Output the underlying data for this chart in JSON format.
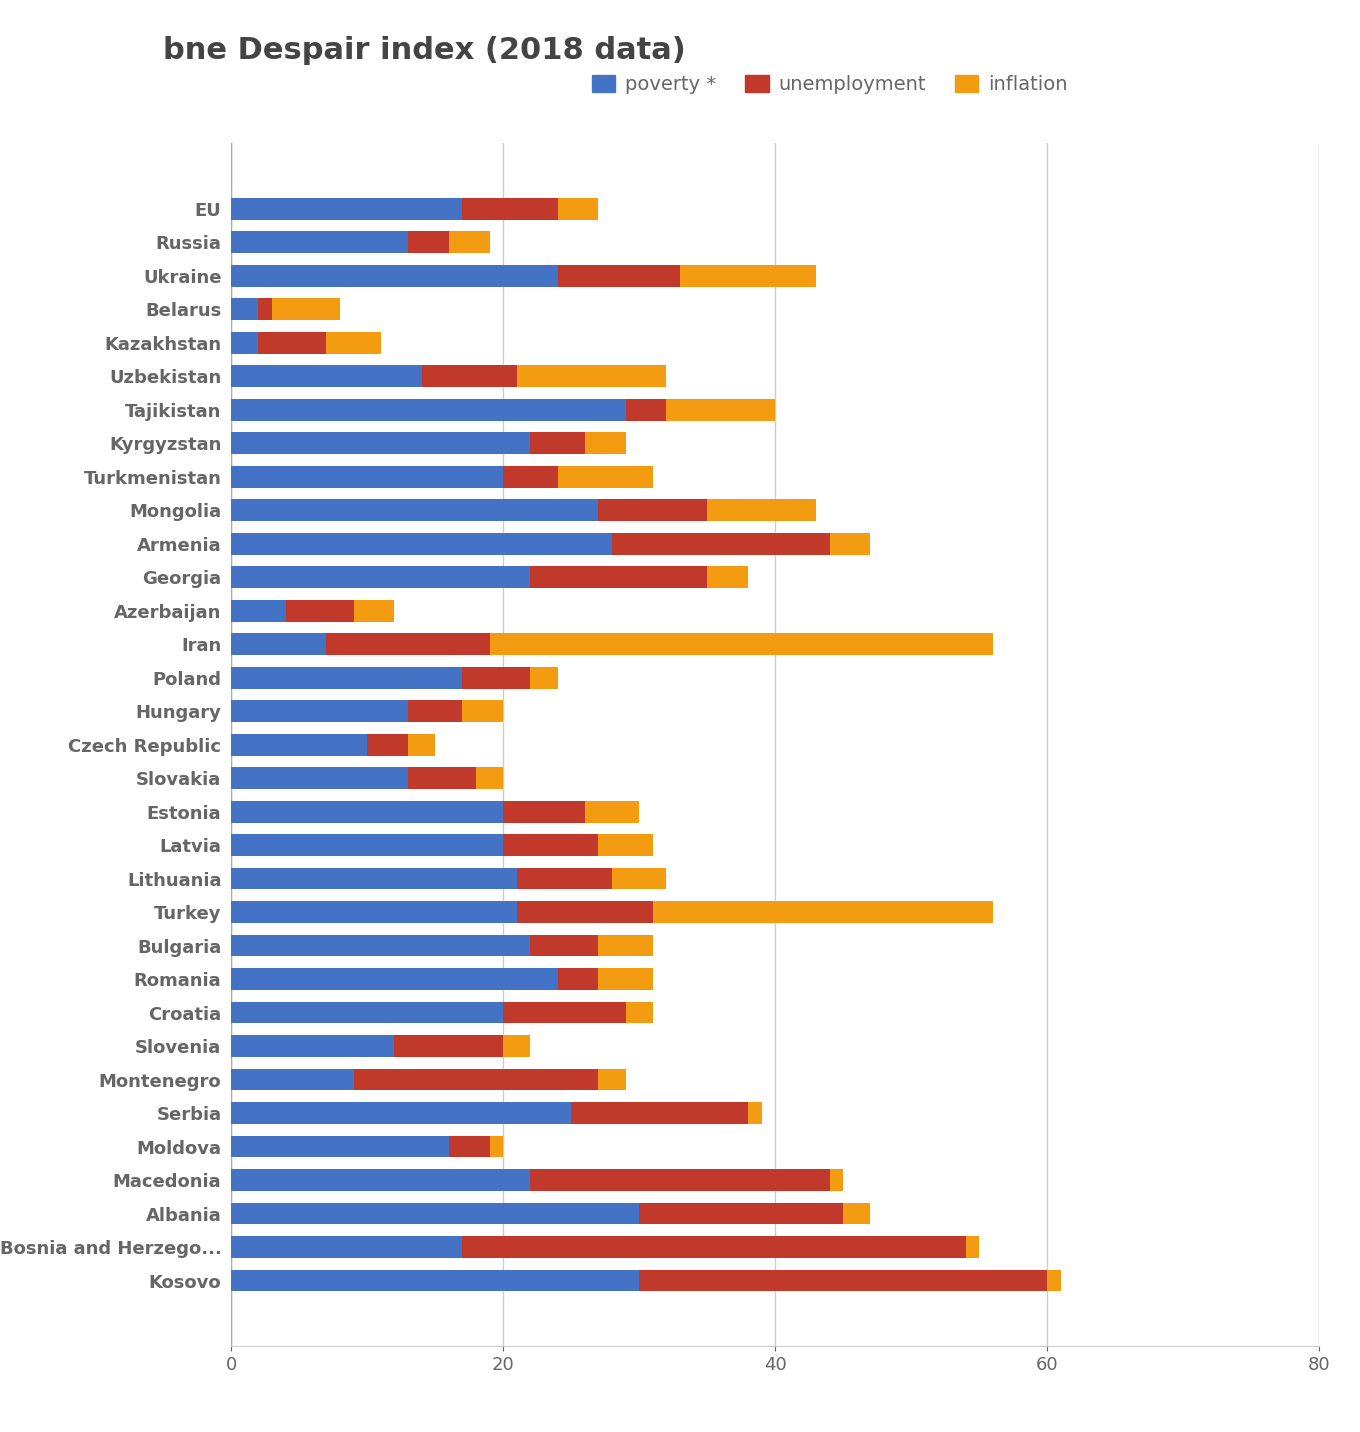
{
  "title": "bne Despair index (2018 data)",
  "categories": [
    "EU",
    "Russia",
    "Ukraine",
    "Belarus",
    "Kazakhstan",
    "Uzbekistan",
    "Tajikistan",
    "Kyrgyzstan",
    "Turkmenistan",
    "Mongolia",
    "Armenia",
    "Georgia",
    "Azerbaijan",
    "Iran",
    "Poland",
    "Hungary",
    "Czech Republic",
    "Slovakia",
    "Estonia",
    "Latvia",
    "Lithuania",
    "Turkey",
    "Bulgaria",
    "Romania",
    "Croatia",
    "Slovenia",
    "Montenegro",
    "Serbia",
    "Moldova",
    "Macedonia",
    "Albania",
    "Bosnia and Herzego...",
    "Kosovo"
  ],
  "poverty": [
    17,
    13,
    24,
    2,
    2,
    14,
    29,
    22,
    20,
    27,
    28,
    22,
    4,
    7,
    17,
    13,
    10,
    13,
    20,
    20,
    21,
    21,
    22,
    24,
    20,
    12,
    9,
    25,
    16,
    22,
    30,
    17,
    30
  ],
  "unemployment": [
    7,
    3,
    9,
    1,
    5,
    7,
    3,
    4,
    4,
    8,
    16,
    13,
    5,
    12,
    5,
    4,
    3,
    5,
    6,
    7,
    7,
    10,
    5,
    3,
    9,
    8,
    18,
    13,
    3,
    22,
    15,
    37,
    30
  ],
  "inflation": [
    3,
    3,
    10,
    5,
    4,
    11,
    8,
    3,
    7,
    8,
    3,
    3,
    3,
    37,
    2,
    3,
    2,
    2,
    4,
    4,
    4,
    25,
    4,
    4,
    2,
    2,
    2,
    1,
    1,
    1,
    2,
    1,
    1
  ],
  "poverty_color": "#4472c4",
  "unemployment_color": "#c0392b",
  "inflation_color": "#f39c12",
  "background_color": "#ffffff",
  "xlim": [
    0,
    80
  ],
  "xticks": [
    0,
    20,
    40,
    60,
    80
  ],
  "grid_color": "#cccccc",
  "title_fontsize": 22,
  "label_fontsize": 13,
  "tick_fontsize": 13,
  "legend_fontsize": 14
}
